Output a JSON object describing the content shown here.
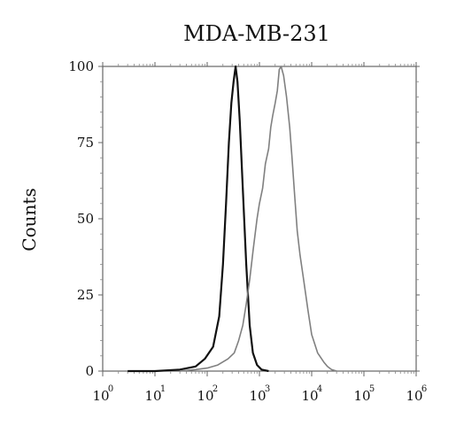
{
  "chart_data": {
    "type": "line",
    "title": "MDA-MB-231",
    "xlabel": "",
    "ylabel": "Counts",
    "xscale": "log",
    "xlim": [
      1,
      1000000
    ],
    "ylim": [
      0,
      100
    ],
    "x_tick_bases": [
      "10",
      "10",
      "10",
      "10",
      "10",
      "10",
      "10"
    ],
    "x_tick_exponents": [
      "0",
      "1",
      "2",
      "3",
      "4",
      "5",
      "6"
    ],
    "y_ticks": [
      "0",
      "25",
      "50",
      "75",
      "100"
    ],
    "y_tick_values": [
      0,
      25,
      50,
      75,
      100
    ],
    "grid": false,
    "legend": "none",
    "series": [
      {
        "color": "#111111",
        "x": [
          3,
          10,
          30,
          60,
          90,
          130,
          170,
          200,
          230,
          260,
          290,
          320,
          350,
          380,
          420,
          480,
          560,
          650,
          750,
          900,
          1100,
          1500
        ],
        "y": [
          0,
          0,
          0.5,
          1.5,
          4,
          8,
          18,
          35,
          55,
          75,
          88,
          95,
          100,
          95,
          82,
          60,
          35,
          15,
          6,
          2,
          0.5,
          0
        ]
      },
      {
        "color": "#808080",
        "x": [
          30,
          60,
          100,
          160,
          250,
          330,
          400,
          480,
          560,
          650,
          760,
          900,
          1000,
          1150,
          1300,
          1500,
          1650,
          1800,
          2000,
          2200,
          2400,
          2600,
          2900,
          3300,
          3800,
          4200,
          4700,
          5300,
          6000,
          7000,
          8500,
          10000,
          13000,
          17000,
          20000,
          24000,
          30000
        ],
        "y": [
          0,
          0.5,
          1,
          2,
          4,
          6,
          10,
          15,
          22,
          30,
          40,
          50,
          55,
          60,
          68,
          73,
          80,
          84,
          88,
          92,
          99,
          100,
          97,
          90,
          80,
          70,
          58,
          46,
          38,
          30,
          20,
          12,
          6,
          3,
          1.5,
          0.5,
          0
        ]
      }
    ]
  }
}
